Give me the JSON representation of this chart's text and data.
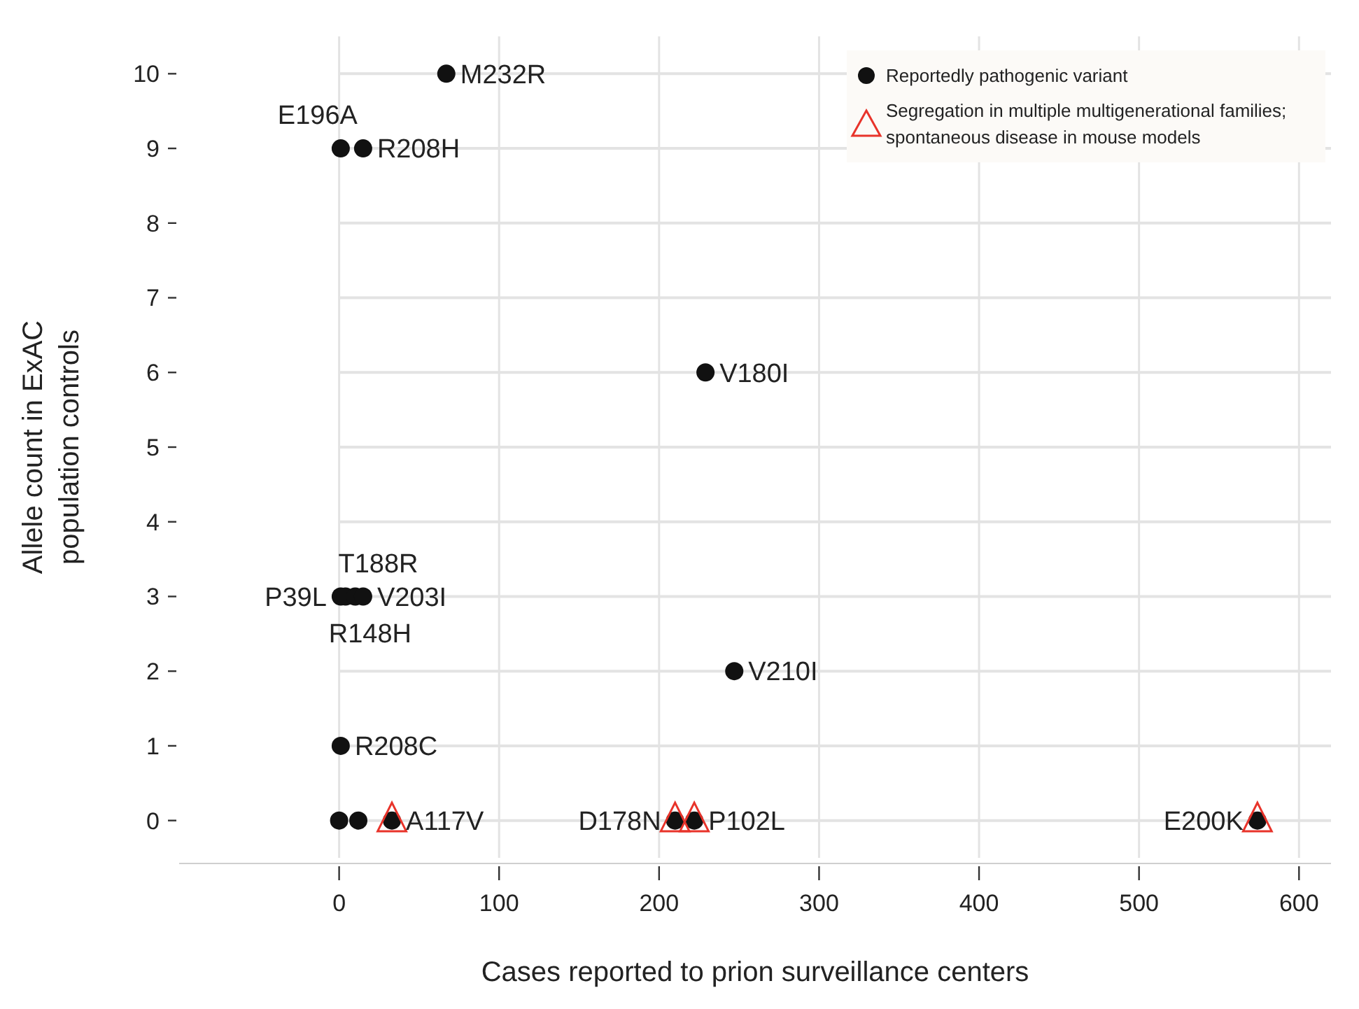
{
  "chart_data": {
    "type": "scatter",
    "xlabel": "Cases reported to prion surveillance centers",
    "ylabel": "Allele count in ExAC population controls",
    "xlim": [
      -100,
      620
    ],
    "ylim": [
      -0.5,
      10.5
    ],
    "xticks": [
      0,
      100,
      200,
      300,
      400,
      500,
      600
    ],
    "yticks": [
      0,
      1,
      2,
      3,
      4,
      5,
      6,
      7,
      8,
      9,
      10
    ],
    "grid": true,
    "legend": "top right",
    "series": [
      {
        "name": "Reportedly pathogenic variant",
        "color": "#111111",
        "marker": "circle",
        "x": [
          67,
          1,
          15,
          229,
          1,
          4,
          10,
          15,
          247,
          1,
          0,
          12,
          33,
          210,
          222,
          574
        ],
        "values": [
          10,
          9,
          9,
          6,
          3,
          3,
          3,
          3,
          2,
          1,
          0,
          0,
          0,
          0,
          0,
          0
        ]
      },
      {
        "name": "Segregation in multiple multigenerational families; spontaneous disease in mouse models",
        "color": "#e8332a",
        "marker": "triangle",
        "x": [
          33,
          210,
          222,
          574
        ],
        "values": [
          0,
          0,
          0,
          0
        ]
      }
    ],
    "annotations": [
      {
        "text": "M232R",
        "x": 67,
        "y": 10
      },
      {
        "text": "E196A",
        "x": 1,
        "y": 9
      },
      {
        "text": "R208H",
        "x": 15,
        "y": 9
      },
      {
        "text": "V180I",
        "x": 229,
        "y": 6
      },
      {
        "text": "T188R",
        "x": 10,
        "y": 3
      },
      {
        "text": "P39L",
        "x": 1,
        "y": 3
      },
      {
        "text": "R148H",
        "x": 4,
        "y": 3
      },
      {
        "text": "V203I",
        "x": 15,
        "y": 3
      },
      {
        "text": "V210I",
        "x": 247,
        "y": 2
      },
      {
        "text": "R208C",
        "x": 1,
        "y": 1
      },
      {
        "text": "A117V",
        "x": 33,
        "y": 0
      },
      {
        "text": "D178N",
        "x": 210,
        "y": 0
      },
      {
        "text": "P102L",
        "x": 222,
        "y": 0
      },
      {
        "text": "E200K",
        "x": 574,
        "y": 0
      }
    ]
  }
}
